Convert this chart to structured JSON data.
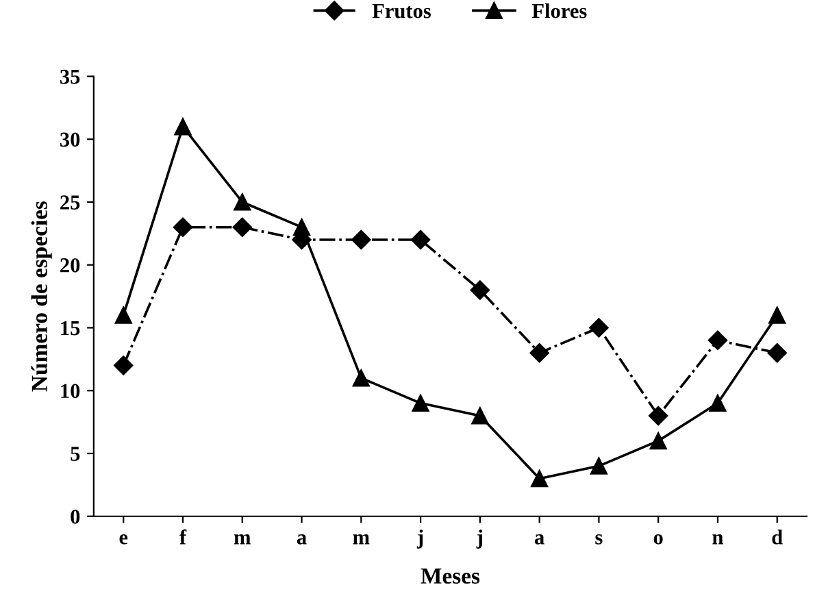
{
  "chart_data": {
    "type": "line",
    "xlabel": "Meses",
    "ylabel": "Número de especies",
    "categories": [
      "e",
      "f",
      "m",
      "a",
      "m",
      "j",
      "j",
      "a",
      "s",
      "o",
      "n",
      "d"
    ],
    "series": [
      {
        "name": "Frutos",
        "color": "#000000",
        "marker": "diamond",
        "line_style": "dashdot",
        "values": [
          12,
          23,
          23,
          22,
          22,
          22,
          18,
          13,
          15,
          8,
          14,
          13
        ]
      },
      {
        "name": "Flores",
        "color": "#000000",
        "marker": "triangle",
        "line_style": "solid",
        "values": [
          16,
          31,
          25,
          23,
          11,
          9,
          8,
          3,
          4,
          6,
          9,
          16
        ]
      }
    ],
    "ylim": [
      0,
      35
    ],
    "yticks": [
      0,
      5,
      10,
      15,
      20,
      25,
      30,
      35
    ],
    "grid": false,
    "legend": "top"
  }
}
